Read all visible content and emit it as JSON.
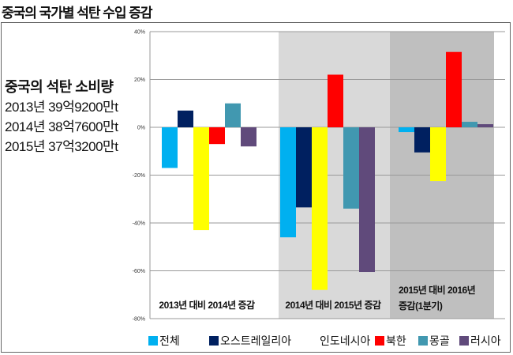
{
  "title": "중국의 국가별 석탄 수입 증감",
  "info": {
    "heading": "중국의 석탄 소비량",
    "lines": [
      "2013년 39억9200만t",
      "2014년 38억7600만t",
      "2015년 37억3200만t"
    ]
  },
  "chart_data": {
    "type": "bar",
    "title": "중국의 국가별 석탄 수입 증감",
    "ylabel": "",
    "xlabel": "",
    "ylim": [
      -80,
      40
    ],
    "yticks": [
      40,
      20,
      0,
      -20,
      -40,
      -60,
      -80
    ],
    "ytick_labels": [
      "40%",
      "20%",
      "0%",
      "-20%",
      "-40%",
      "-60%",
      "-80%"
    ],
    "grid": true,
    "legend_position": "bottom",
    "categories": [
      "2013년 대비 2014년 증감",
      "2014년 대비 2015년 증감",
      "2015년 대비 2016년 증감(1분기)"
    ],
    "category_label_lines": [
      [
        "2013년 대비 2014년 증감"
      ],
      [
        "2014년 대비 2015년 증감"
      ],
      [
        "2015년 대비 2016년",
        "증감(1분기)"
      ]
    ],
    "series": [
      {
        "name": "전체",
        "color": "#00b0f0",
        "values": [
          -17,
          -46,
          -2
        ]
      },
      {
        "name": "오스트레일리아",
        "color": "#002060",
        "values": [
          7,
          -33.5,
          -10.5
        ]
      },
      {
        "name": "인도네시아",
        "color": "#ffff00",
        "values": [
          -43,
          -68,
          -22.5
        ]
      },
      {
        "name": "북한",
        "color": "#ff0000",
        "values": [
          -7,
          22,
          31.5
        ]
      },
      {
        "name": "몽골",
        "color": "#4198b0",
        "values": [
          10,
          -34,
          2.3
        ]
      },
      {
        "name": "러시아",
        "color": "#604a7b",
        "values": [
          -8,
          -60.5,
          1.3
        ]
      }
    ]
  }
}
